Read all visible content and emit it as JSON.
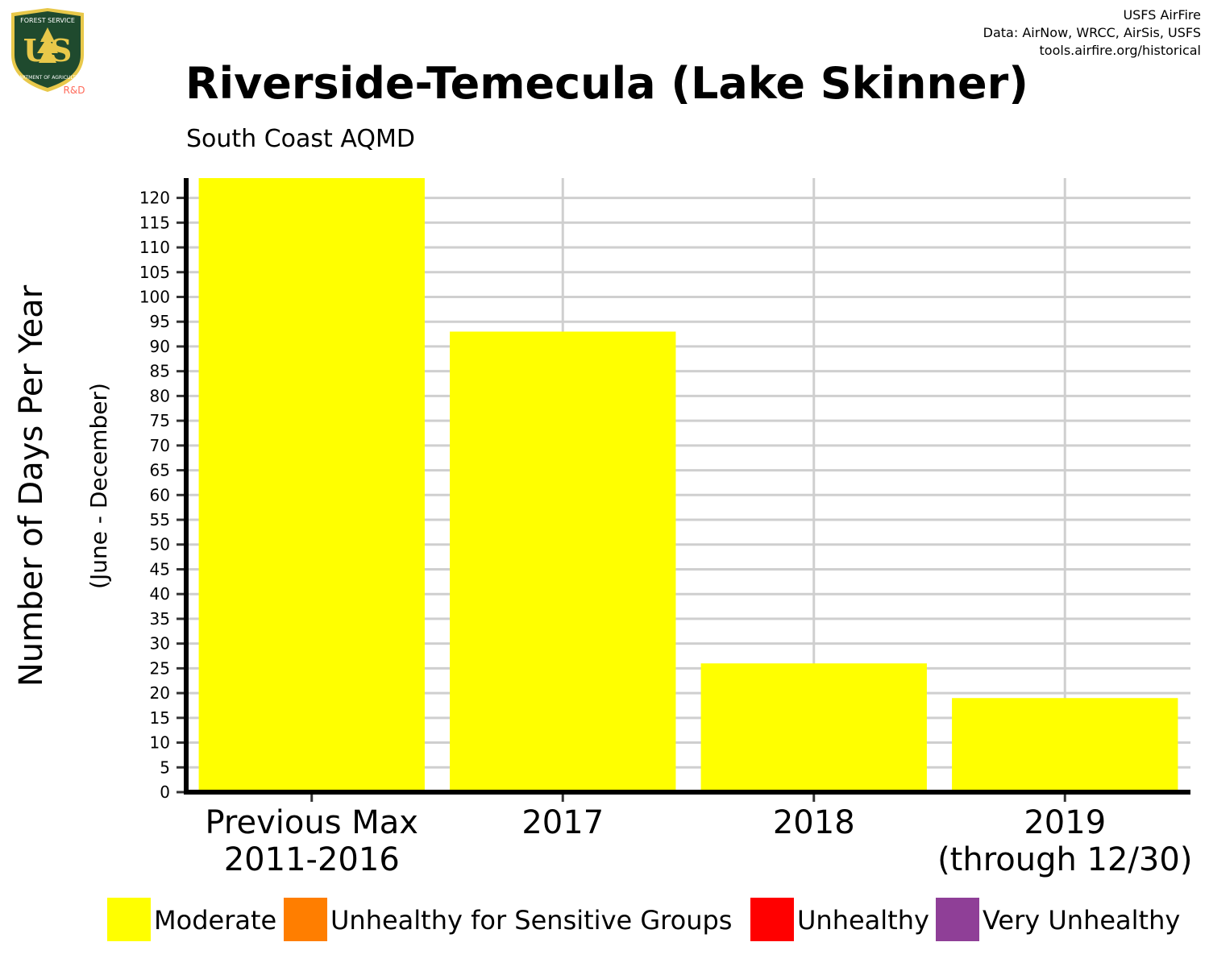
{
  "logo": {
    "top_text": "FOREST SERVICE",
    "letters": "US",
    "bottom_text": "DEPARTMENT OF AGRICULTURE",
    "tag": "R&D"
  },
  "credits": [
    "USFS AirFire",
    "Data: AirNow, WRCC, AirSis, USFS",
    "tools.airfire.org/historical"
  ],
  "colors": {
    "bar": "#ffff00",
    "grid": "#cfcfcf",
    "axis": "#000000",
    "logo_green": "#1f4a2e",
    "logo_gold": "#e8c84a",
    "logo_rd": "#ff6b5b"
  },
  "chart_data": {
    "type": "bar",
    "title": "Riverside-Temecula (Lake Skinner)",
    "subtitle": "South Coast AQMD",
    "ylabel": "Number of Days Per Year",
    "ylabel2": "(June - December)",
    "xlabel": "",
    "categories": [
      [
        "Previous Max",
        "2011-2016"
      ],
      [
        "2017"
      ],
      [
        "2018"
      ],
      [
        "2019",
        "(through 12/30)"
      ]
    ],
    "values": [
      124,
      93,
      26,
      19
    ],
    "ylim": [
      0,
      124
    ],
    "yticks": [
      0,
      5,
      10,
      15,
      20,
      25,
      30,
      35,
      40,
      45,
      50,
      55,
      60,
      65,
      70,
      75,
      80,
      85,
      90,
      95,
      100,
      105,
      110,
      115,
      120
    ],
    "grid": true,
    "legend": {
      "placement": "bottom",
      "entries": [
        {
          "label": "Moderate",
          "color": "#ffff00"
        },
        {
          "label": "Unhealthy for Sensitive Groups",
          "color": "#ff7e00"
        },
        {
          "label": "Unhealthy",
          "color": "#ff0000"
        },
        {
          "label": "Very Unhealthy",
          "color": "#8f3f97"
        }
      ]
    }
  }
}
